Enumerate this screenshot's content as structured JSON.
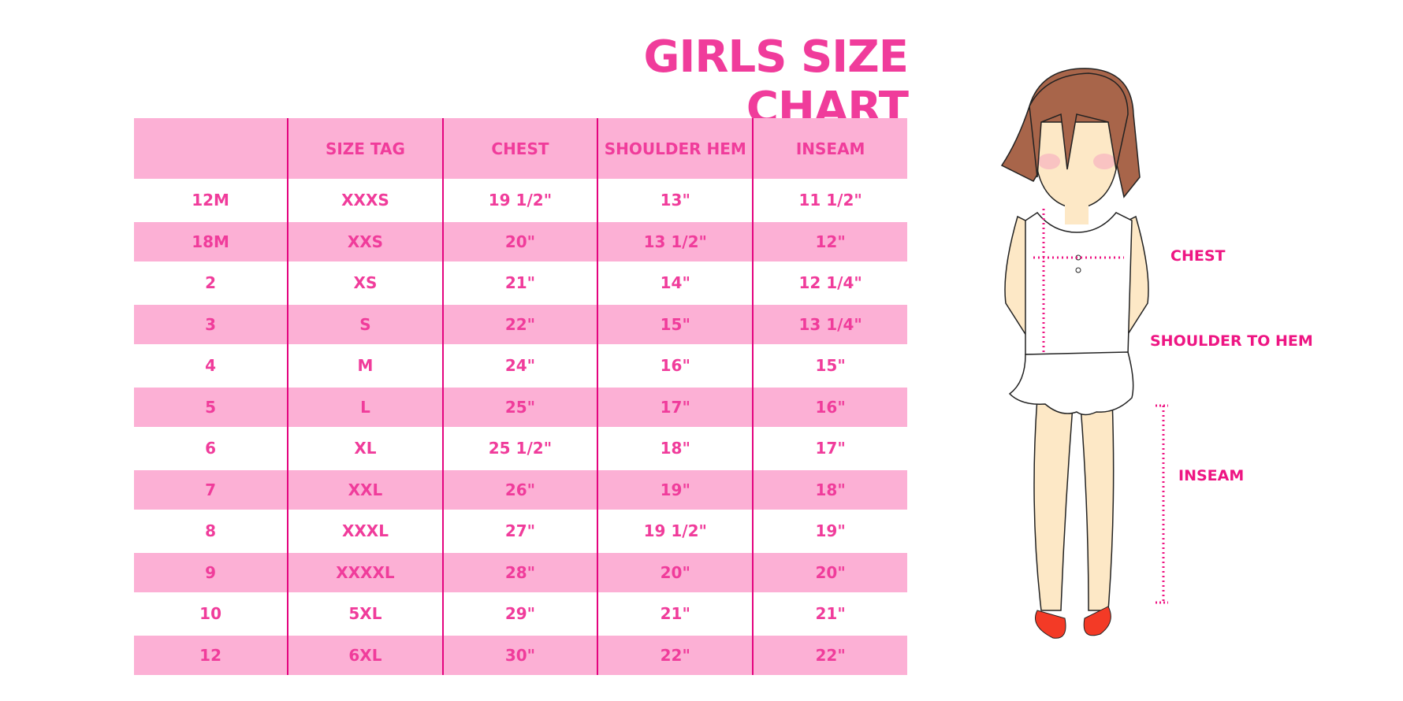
{
  "title": "GIRLS SIZE CHART",
  "table": {
    "headers": [
      "",
      "SIZE TAG",
      "CHEST",
      "SHOULDER HEM",
      "INSEAM"
    ],
    "rows": [
      [
        "12M",
        "XXXS",
        "19 1/2\"",
        "13\"",
        "11 1/2\""
      ],
      [
        "18M",
        "XXS",
        "20\"",
        "13 1/2\"",
        "12\""
      ],
      [
        "2",
        "XS",
        "21\"",
        "14\"",
        "12 1/4\""
      ],
      [
        "3",
        "S",
        "22\"",
        "15\"",
        "13 1/4\""
      ],
      [
        "4",
        "M",
        "24\"",
        "16\"",
        "15\""
      ],
      [
        "5",
        "L",
        "25\"",
        "17\"",
        "16\""
      ],
      [
        "6",
        "XL",
        "25 1/2\"",
        "18\"",
        "17\""
      ],
      [
        "7",
        "XXL",
        "26\"",
        "19\"",
        "18\""
      ],
      [
        "8",
        "XXXL",
        "27\"",
        "19 1/2\"",
        "19\""
      ],
      [
        "9",
        "XXXXL",
        "28\"",
        "20\"",
        "20\""
      ],
      [
        "10",
        "5XL",
        "29\"",
        "21\"",
        "21\""
      ],
      [
        "12",
        "6XL",
        "30\"",
        "22\"",
        "22\""
      ]
    ]
  },
  "figure": {
    "labels": {
      "chest": "CHEST",
      "shoulder_to_hem": "SHOULDER TO HEM",
      "inseam": "INSEAM"
    }
  },
  "colors": {
    "text": "#f03c9b",
    "stripe": "#fcb0d5",
    "divider": "#e4047f"
  }
}
